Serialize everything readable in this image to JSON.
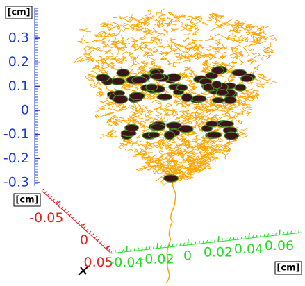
{
  "chart_data": {
    "type": "neuron3d",
    "z_axis": {
      "label": "[cm]",
      "color": "#1e3be0",
      "lim": [
        -0.3,
        0.3
      ],
      "ticks": [
        0.3,
        0.2,
        0.1,
        0,
        -0.1,
        -0.2,
        -0.3
      ]
    },
    "x_axis": {
      "label": "[cm]",
      "color": "#e02424",
      "lim": [
        -0.08,
        0.06
      ],
      "ticks": [
        -0.05,
        0,
        0.05
      ]
    },
    "y_axis": {
      "label": "[cm]",
      "color": "#22dd22",
      "lim": [
        -0.05,
        0.075
      ],
      "ticks": [
        -0.04,
        -0.02,
        0,
        0.02,
        0.04,
        0.06
      ]
    },
    "neurite_color": "#ffa500",
    "soma_color": "#3a1418"
  }
}
